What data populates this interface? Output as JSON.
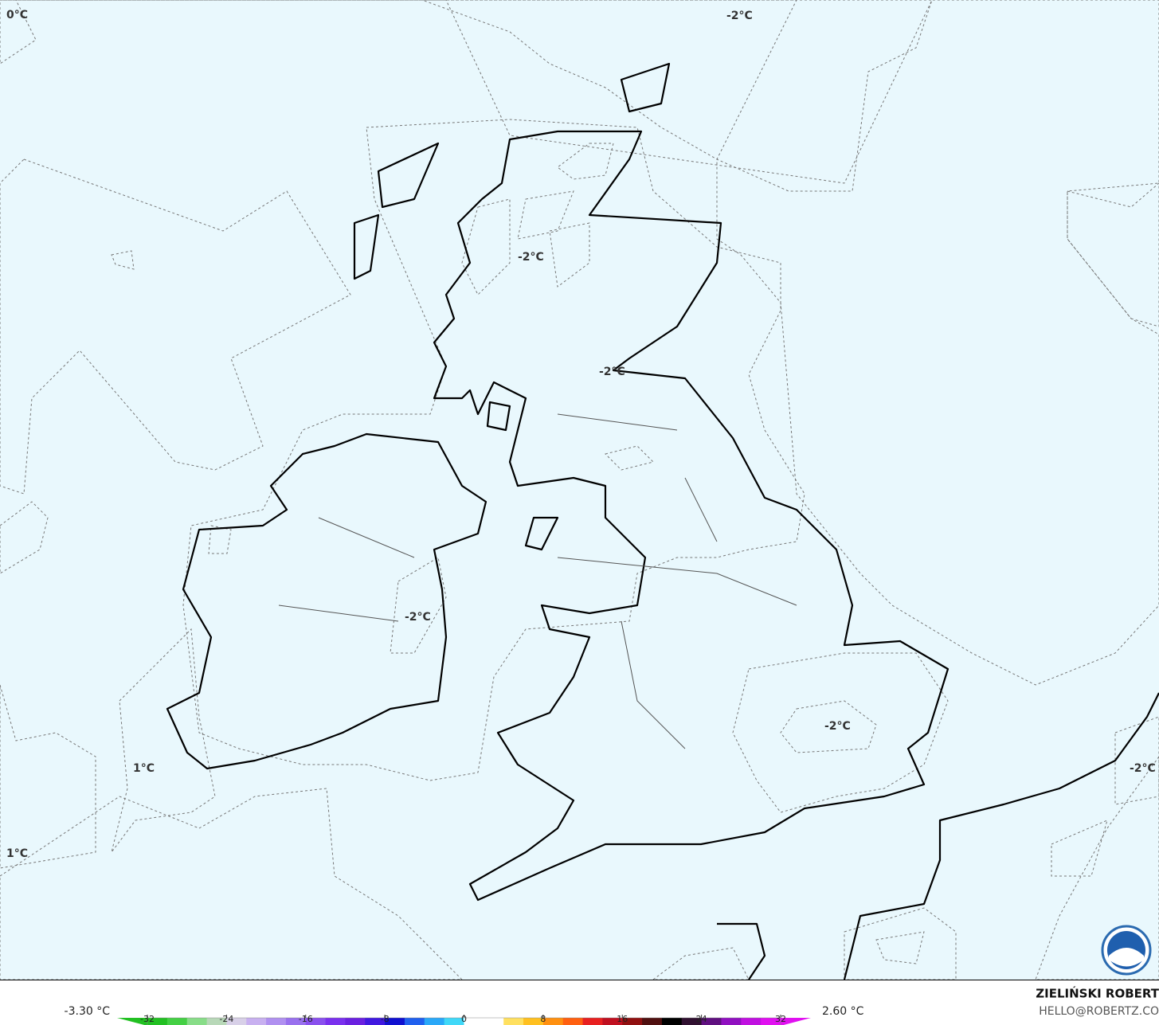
{
  "map": {
    "contour_labels": [
      "0°C",
      "-2°C",
      "-2°C",
      "-2°C",
      "-2°C",
      "-2°C",
      "1°C",
      "1°C",
      "-2°C"
    ]
  },
  "colorbar": {
    "min_label": "-3.30 °C",
    "max_label": "2.60 °C",
    "ticks": [
      -32,
      -24,
      -16,
      -8,
      0,
      8,
      16,
      24,
      32
    ],
    "colors": [
      "#22c022",
      "#44d044",
      "#88dd88",
      "#b8d8b8",
      "#d8d0e8",
      "#c8b0f0",
      "#b090f0",
      "#9970ee",
      "#8a50ee",
      "#7a30ee",
      "#6a20e0",
      "#4018e0",
      "#1010d0",
      "#2060ee",
      "#2aa8f8",
      "#40d8f8",
      "#ffffff",
      "#ffffff",
      "#ffe060",
      "#ffc020",
      "#ff9010",
      "#ff6010",
      "#e82020",
      "#c01020",
      "#901010",
      "#501010",
      "#000000",
      "#301030",
      "#601080",
      "#9010c0",
      "#c010e0",
      "#e010f0"
    ]
  },
  "credit": {
    "name": "ZIELIŃSKI ROBERT",
    "email": "HELLO@ROBERTZ.CO"
  }
}
